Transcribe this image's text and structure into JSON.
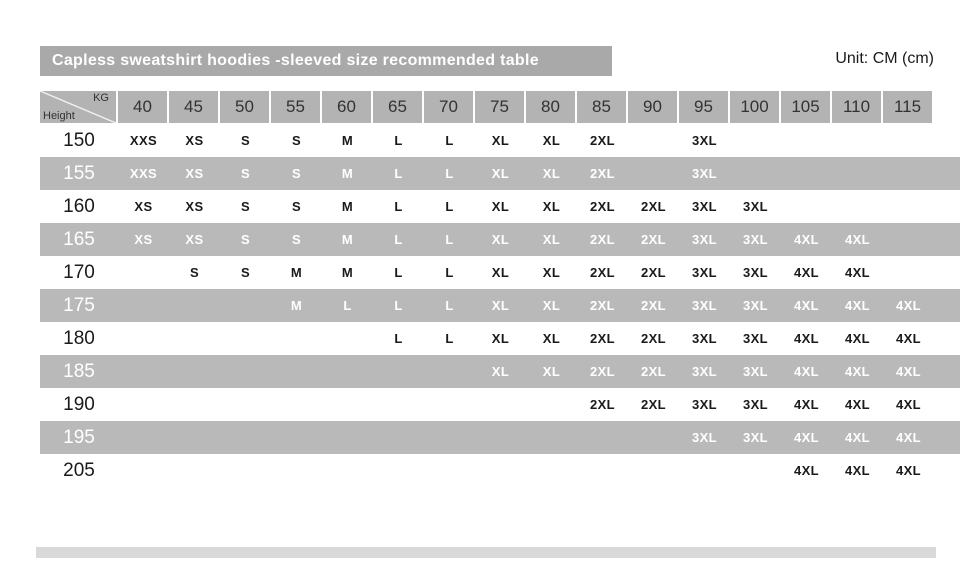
{
  "title_bar": "Capless sweatshirt hoodies -sleeved size recommended table",
  "unit_label": "Unit: CM (cm)",
  "chart_data": {
    "type": "table",
    "title": "Capless sweatshirt hoodies -sleeved size recommended table",
    "unit": "Unit: CM (cm)",
    "corner": {
      "top_right": "KG",
      "bottom_left": "Height"
    },
    "columns_kg": [
      "40",
      "45",
      "50",
      "55",
      "60",
      "65",
      "70",
      "75",
      "80",
      "85",
      "90",
      "95",
      "100",
      "105",
      "110",
      "115"
    ],
    "rows": [
      {
        "height": "150",
        "shaded": false,
        "sizes": [
          "XXS",
          "XS",
          "S",
          "S",
          "M",
          "L",
          "L",
          "XL",
          "XL",
          "2XL",
          "",
          "3XL",
          "",
          "",
          "",
          ""
        ]
      },
      {
        "height": "155",
        "shaded": true,
        "sizes": [
          "XXS",
          "XS",
          "S",
          "S",
          "M",
          "L",
          "L",
          "XL",
          "XL",
          "2XL",
          "",
          "3XL",
          "",
          "",
          "",
          ""
        ]
      },
      {
        "height": "160",
        "shaded": false,
        "sizes": [
          "XS",
          "XS",
          "S",
          "S",
          "M",
          "L",
          "L",
          "XL",
          "XL",
          "2XL",
          "2XL",
          "3XL",
          "3XL",
          "",
          "",
          ""
        ]
      },
      {
        "height": "165",
        "shaded": true,
        "sizes": [
          "XS",
          "XS",
          "S",
          "S",
          "M",
          "L",
          "L",
          "XL",
          "XL",
          "2XL",
          "2XL",
          "3XL",
          "3XL",
          "4XL",
          "4XL",
          ""
        ]
      },
      {
        "height": "170",
        "shaded": false,
        "sizes": [
          "",
          "S",
          "S",
          "M",
          "M",
          "L",
          "L",
          "XL",
          "XL",
          "2XL",
          "2XL",
          "3XL",
          "3XL",
          "4XL",
          "4XL",
          ""
        ]
      },
      {
        "height": "175",
        "shaded": true,
        "sizes": [
          "",
          "",
          "",
          "M",
          "L",
          "L",
          "L",
          "XL",
          "XL",
          "2XL",
          "2XL",
          "3XL",
          "3XL",
          "4XL",
          "4XL",
          "4XL"
        ]
      },
      {
        "height": "180",
        "shaded": false,
        "sizes": [
          "",
          "",
          "",
          "",
          "",
          "L",
          "L",
          "XL",
          "XL",
          "2XL",
          "2XL",
          "3XL",
          "3XL",
          "4XL",
          "4XL",
          "4XL"
        ]
      },
      {
        "height": "185",
        "shaded": true,
        "sizes": [
          "",
          "",
          "",
          "",
          "",
          "",
          "",
          "XL",
          "XL",
          "2XL",
          "2XL",
          "3XL",
          "3XL",
          "4XL",
          "4XL",
          "4XL"
        ]
      },
      {
        "height": "190",
        "shaded": false,
        "sizes": [
          "",
          "",
          "",
          "",
          "",
          "",
          "",
          "",
          "",
          "2XL",
          "2XL",
          "3XL",
          "3XL",
          "4XL",
          "4XL",
          "4XL"
        ]
      },
      {
        "height": "195",
        "shaded": true,
        "sizes": [
          "",
          "",
          "",
          "",
          "",
          "",
          "",
          "",
          "",
          "",
          "",
          "3XL",
          "3XL",
          "4XL",
          "4XL",
          "4XL"
        ]
      },
      {
        "height": "205",
        "shaded": false,
        "sizes": [
          "",
          "",
          "",
          "",
          "",
          "",
          "",
          "",
          "",
          "",
          "",
          "",
          "",
          "4XL",
          "4XL",
          "4XL"
        ]
      }
    ]
  },
  "colors": {
    "title_bar_bg": "#a9a9a9",
    "title_text": "#ffffff",
    "header_cell_bg": "#b3b3b3",
    "header_text": "#333333",
    "shaded_row_bg": "#b9b9b9",
    "shaded_row_text": "#ffffff",
    "plain_row_text": "#1a1a1a",
    "bottom_strip": "#d9d9d9"
  }
}
